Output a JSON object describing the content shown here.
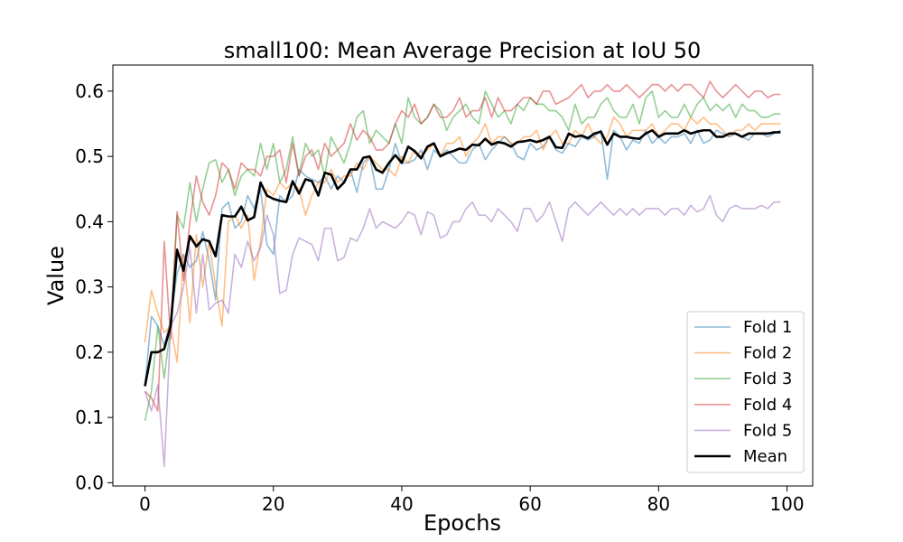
{
  "chart_data": {
    "type": "line",
    "title": "small100: Mean Average Precision at IoU 50",
    "xlabel": "Epochs",
    "ylabel": "Value",
    "xlim": [
      -5,
      104
    ],
    "ylim": [
      -0.005,
      0.64
    ],
    "xticks": [
      0,
      20,
      40,
      60,
      80,
      100
    ],
    "yticks": [
      0.0,
      0.1,
      0.2,
      0.3,
      0.4,
      0.5,
      0.6
    ],
    "grid": false,
    "legend_position": "bottom-right",
    "series": [
      {
        "name": "Fold 1",
        "color": "#1f77b4",
        "values": [
          0.15,
          0.255,
          0.24,
          0.21,
          0.25,
          0.32,
          0.35,
          0.33,
          0.34,
          0.385,
          0.34,
          0.28,
          0.42,
          0.43,
          0.39,
          0.4,
          0.44,
          0.42,
          0.45,
          0.365,
          0.35,
          0.44,
          0.43,
          0.44,
          0.48,
          0.47,
          0.465,
          0.46,
          0.47,
          0.45,
          0.47,
          0.46,
          0.48,
          0.445,
          0.49,
          0.5,
          0.45,
          0.45,
          0.48,
          0.52,
          0.49,
          0.49,
          0.495,
          0.51,
          0.48,
          0.51,
          0.5,
          0.51,
          0.5,
          0.49,
          0.49,
          0.51,
          0.52,
          0.495,
          0.51,
          0.52,
          0.53,
          0.52,
          0.5,
          0.495,
          0.52,
          0.51,
          0.515,
          0.53,
          0.51,
          0.505,
          0.52,
          0.515,
          0.53,
          0.525,
          0.53,
          0.54,
          0.465,
          0.54,
          0.53,
          0.51,
          0.525,
          0.52,
          0.54,
          0.52,
          0.53,
          0.52,
          0.53,
          0.53,
          0.535,
          0.52,
          0.54,
          0.52,
          0.525,
          0.54,
          0.535,
          0.53,
          0.535,
          0.53,
          0.525,
          0.535,
          0.535,
          0.53,
          0.535,
          0.54
        ]
      },
      {
        "name": "Fold 2",
        "color": "#ff7f0e",
        "values": [
          0.215,
          0.295,
          0.26,
          0.23,
          0.24,
          0.185,
          0.35,
          0.245,
          0.38,
          0.3,
          0.37,
          0.3,
          0.24,
          0.4,
          0.41,
          0.39,
          0.41,
          0.31,
          0.37,
          0.45,
          0.44,
          0.46,
          0.45,
          0.46,
          0.45,
          0.41,
          0.44,
          0.46,
          0.46,
          0.48,
          0.46,
          0.47,
          0.47,
          0.49,
          0.48,
          0.5,
          0.49,
          0.48,
          0.48,
          0.47,
          0.5,
          0.49,
          0.51,
          0.5,
          0.51,
          0.52,
          0.5,
          0.52,
          0.52,
          0.53,
          0.5,
          0.52,
          0.53,
          0.55,
          0.52,
          0.53,
          0.53,
          0.52,
          0.52,
          0.53,
          0.53,
          0.54,
          0.51,
          0.53,
          0.54,
          0.52,
          0.52,
          0.54,
          0.53,
          0.55,
          0.53,
          0.52,
          0.53,
          0.56,
          0.55,
          0.53,
          0.54,
          0.54,
          0.54,
          0.55,
          0.53,
          0.54,
          0.55,
          0.55,
          0.54,
          0.56,
          0.55,
          0.56,
          0.55,
          0.55,
          0.54,
          0.53,
          0.54,
          0.54,
          0.55,
          0.54,
          0.55,
          0.55,
          0.55,
          0.55
        ]
      },
      {
        "name": "Fold 3",
        "color": "#2ca02c",
        "values": [
          0.095,
          0.14,
          0.24,
          0.16,
          0.24,
          0.41,
          0.39,
          0.46,
          0.4,
          0.45,
          0.49,
          0.495,
          0.46,
          0.48,
          0.44,
          0.47,
          0.48,
          0.47,
          0.52,
          0.48,
          0.52,
          0.46,
          0.48,
          0.53,
          0.47,
          0.52,
          0.5,
          0.51,
          0.47,
          0.53,
          0.51,
          0.49,
          0.52,
          0.56,
          0.57,
          0.52,
          0.54,
          0.53,
          0.52,
          0.55,
          0.52,
          0.59,
          0.56,
          0.55,
          0.56,
          0.58,
          0.57,
          0.54,
          0.56,
          0.57,
          0.58,
          0.56,
          0.55,
          0.6,
          0.58,
          0.56,
          0.57,
          0.55,
          0.58,
          0.57,
          0.59,
          0.58,
          0.58,
          0.57,
          0.57,
          0.56,
          0.54,
          0.58,
          0.55,
          0.56,
          0.56,
          0.58,
          0.59,
          0.57,
          0.56,
          0.56,
          0.58,
          0.55,
          0.59,
          0.6,
          0.56,
          0.57,
          0.56,
          0.56,
          0.58,
          0.56,
          0.58,
          0.59,
          0.57,
          0.58,
          0.57,
          0.58,
          0.56,
          0.58,
          0.57,
          0.57,
          0.56,
          0.56,
          0.565,
          0.565
        ]
      },
      {
        "name": "Fold 4",
        "color": "#d62728",
        "values": [
          0.14,
          0.13,
          0.11,
          0.37,
          0.22,
          0.415,
          0.31,
          0.4,
          0.47,
          0.43,
          0.41,
          0.44,
          0.49,
          0.48,
          0.45,
          0.49,
          0.48,
          0.48,
          0.47,
          0.5,
          0.5,
          0.51,
          0.46,
          0.52,
          0.47,
          0.5,
          0.51,
          0.48,
          0.52,
          0.5,
          0.51,
          0.52,
          0.55,
          0.525,
          0.54,
          0.53,
          0.51,
          0.51,
          0.52,
          0.55,
          0.57,
          0.56,
          0.58,
          0.55,
          0.56,
          0.58,
          0.56,
          0.56,
          0.57,
          0.59,
          0.56,
          0.57,
          0.57,
          0.59,
          0.56,
          0.59,
          0.57,
          0.57,
          0.58,
          0.59,
          0.59,
          0.58,
          0.6,
          0.6,
          0.58,
          0.585,
          0.59,
          0.6,
          0.61,
          0.59,
          0.6,
          0.6,
          0.61,
          0.6,
          0.6,
          0.61,
          0.6,
          0.59,
          0.6,
          0.61,
          0.61,
          0.6,
          0.61,
          0.6,
          0.61,
          0.61,
          0.6,
          0.59,
          0.615,
          0.6,
          0.59,
          0.6,
          0.61,
          0.6,
          0.59,
          0.6,
          0.6,
          0.59,
          0.595,
          0.595
        ]
      },
      {
        "name": "Fold 5",
        "color": "#9467bd",
        "values": [
          0.14,
          0.11,
          0.15,
          0.025,
          0.24,
          0.26,
          0.3,
          0.36,
          0.26,
          0.35,
          0.265,
          0.275,
          0.28,
          0.26,
          0.35,
          0.33,
          0.37,
          0.34,
          0.36,
          0.41,
          0.38,
          0.29,
          0.295,
          0.35,
          0.375,
          0.37,
          0.365,
          0.34,
          0.39,
          0.39,
          0.34,
          0.345,
          0.375,
          0.37,
          0.39,
          0.42,
          0.39,
          0.4,
          0.395,
          0.39,
          0.4,
          0.415,
          0.41,
          0.38,
          0.415,
          0.41,
          0.375,
          0.38,
          0.4,
          0.4,
          0.42,
          0.43,
          0.41,
          0.41,
          0.4,
          0.42,
          0.41,
          0.4,
          0.385,
          0.42,
          0.42,
          0.4,
          0.41,
          0.43,
          0.4,
          0.37,
          0.42,
          0.43,
          0.42,
          0.41,
          0.42,
          0.43,
          0.42,
          0.41,
          0.42,
          0.41,
          0.42,
          0.41,
          0.42,
          0.42,
          0.42,
          0.41,
          0.42,
          0.42,
          0.41,
          0.425,
          0.415,
          0.42,
          0.44,
          0.41,
          0.4,
          0.42,
          0.425,
          0.42,
          0.42,
          0.42,
          0.425,
          0.42,
          0.43,
          0.43
        ]
      },
      {
        "name": "Mean",
        "color": "#000000",
        "values": [
          0.148,
          0.2,
          0.2,
          0.205,
          0.24,
          0.357,
          0.325,
          0.378,
          0.362,
          0.373,
          0.37,
          0.347,
          0.41,
          0.408,
          0.408,
          0.423,
          0.402,
          0.407,
          0.46,
          0.44,
          0.435,
          0.432,
          0.43,
          0.462,
          0.443,
          0.465,
          0.462,
          0.44,
          0.475,
          0.472,
          0.45,
          0.46,
          0.48,
          0.48,
          0.498,
          0.5,
          0.48,
          0.475,
          0.49,
          0.502,
          0.49,
          0.515,
          0.508,
          0.497,
          0.515,
          0.52,
          0.5,
          0.505,
          0.508,
          0.512,
          0.51,
          0.518,
          0.517,
          0.527,
          0.518,
          0.522,
          0.52,
          0.515,
          0.522,
          0.523,
          0.525,
          0.522,
          0.525,
          0.53,
          0.514,
          0.513,
          0.535,
          0.53,
          0.532,
          0.528,
          0.535,
          0.538,
          0.518,
          0.535,
          0.53,
          0.53,
          0.528,
          0.527,
          0.535,
          0.54,
          0.53,
          0.535,
          0.535,
          0.535,
          0.54,
          0.535,
          0.538,
          0.54,
          0.54,
          0.53,
          0.53,
          0.535,
          0.535,
          0.53,
          0.535,
          0.535,
          0.535,
          0.535,
          0.537,
          0.537
        ]
      }
    ]
  }
}
